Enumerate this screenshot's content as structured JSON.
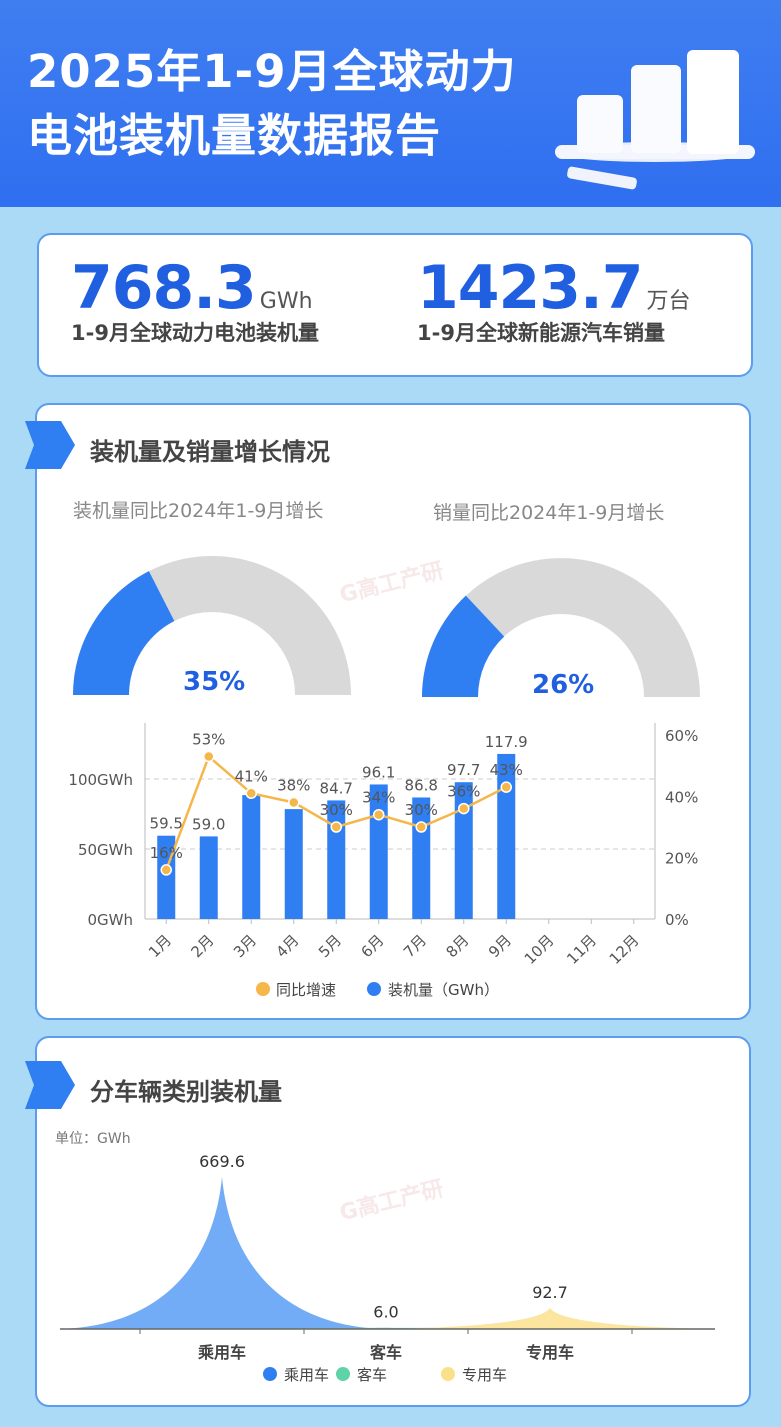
{
  "header": {
    "title_line1": "2025年1-9月全球动力",
    "title_line2": "电池装机量数据报告"
  },
  "kpis": [
    {
      "value": "768.3",
      "unit": "GWh",
      "label": "1-9月全球动力电池装机量"
    },
    {
      "value": "1423.7",
      "unit": "万台",
      "label": "1-9月全球新能源汽车销量"
    }
  ],
  "growth_section": {
    "title": "装机量及销量增长情况",
    "gauges": [
      {
        "label": "装机量同比2024年1-9月增长",
        "value_text": "35%",
        "value": 35
      },
      {
        "label": "销量同比2024年1-9月增长",
        "value_text": "26%",
        "value": 26
      }
    ]
  },
  "vehicle_section": {
    "title": "分车辆类别装机量"
  },
  "watermark": "G高工产研",
  "colors": {
    "accent": "#2f7ff2",
    "gauge_track": "#d9d9d9",
    "line": "#f5b64a",
    "bus": "#5fd3a8",
    "special": "#fbe49a",
    "passenger": "#6aa8f5"
  },
  "chart_data": [
    {
      "type": "bar+line",
      "categories": [
        "1月",
        "2月",
        "3月",
        "4月",
        "5月",
        "6月",
        "7月",
        "8月",
        "9月",
        "10月",
        "11月",
        "12月"
      ],
      "series": [
        {
          "name": "装机量（GWh）",
          "type": "bar",
          "axis": "left",
          "values": [
            59.5,
            59.0,
            88.5,
            78.5,
            84.7,
            96.1,
            86.8,
            97.7,
            117.9,
            null,
            null,
            null
          ],
          "labels": [
            "59.5",
            "59.0",
            "",
            "",
            "84.7",
            "96.1",
            "86.8",
            "97.7",
            "117.9",
            "",
            "",
            ""
          ]
        },
        {
          "name": "同比增速",
          "type": "line",
          "axis": "right",
          "values": [
            16,
            53,
            41,
            38,
            30,
            34,
            30,
            36,
            43,
            null,
            null,
            null
          ],
          "labels": [
            "16%",
            "53%",
            "41%",
            "38%",
            "30%",
            "34%",
            "30%",
            "36%",
            "43%",
            "",
            "",
            ""
          ]
        }
      ],
      "left_axis": {
        "ticks": [
          "0GWh",
          "50GWh",
          "100GWh"
        ],
        "range": [
          0,
          140
        ]
      },
      "right_axis": {
        "ticks": [
          "0%",
          "20%",
          "40%",
          "60%"
        ],
        "range": [
          0,
          60
        ]
      },
      "grid": "dashed horizontal",
      "legend": "bottom"
    },
    {
      "type": "area",
      "unit_label": "单位：GWh",
      "categories": [
        "乘用车",
        "客车",
        "专用车"
      ],
      "values": [
        669.6,
        6.0,
        92.7
      ],
      "labels": [
        "669.6",
        "6.0",
        "92.7"
      ],
      "legend": "bottom"
    }
  ]
}
